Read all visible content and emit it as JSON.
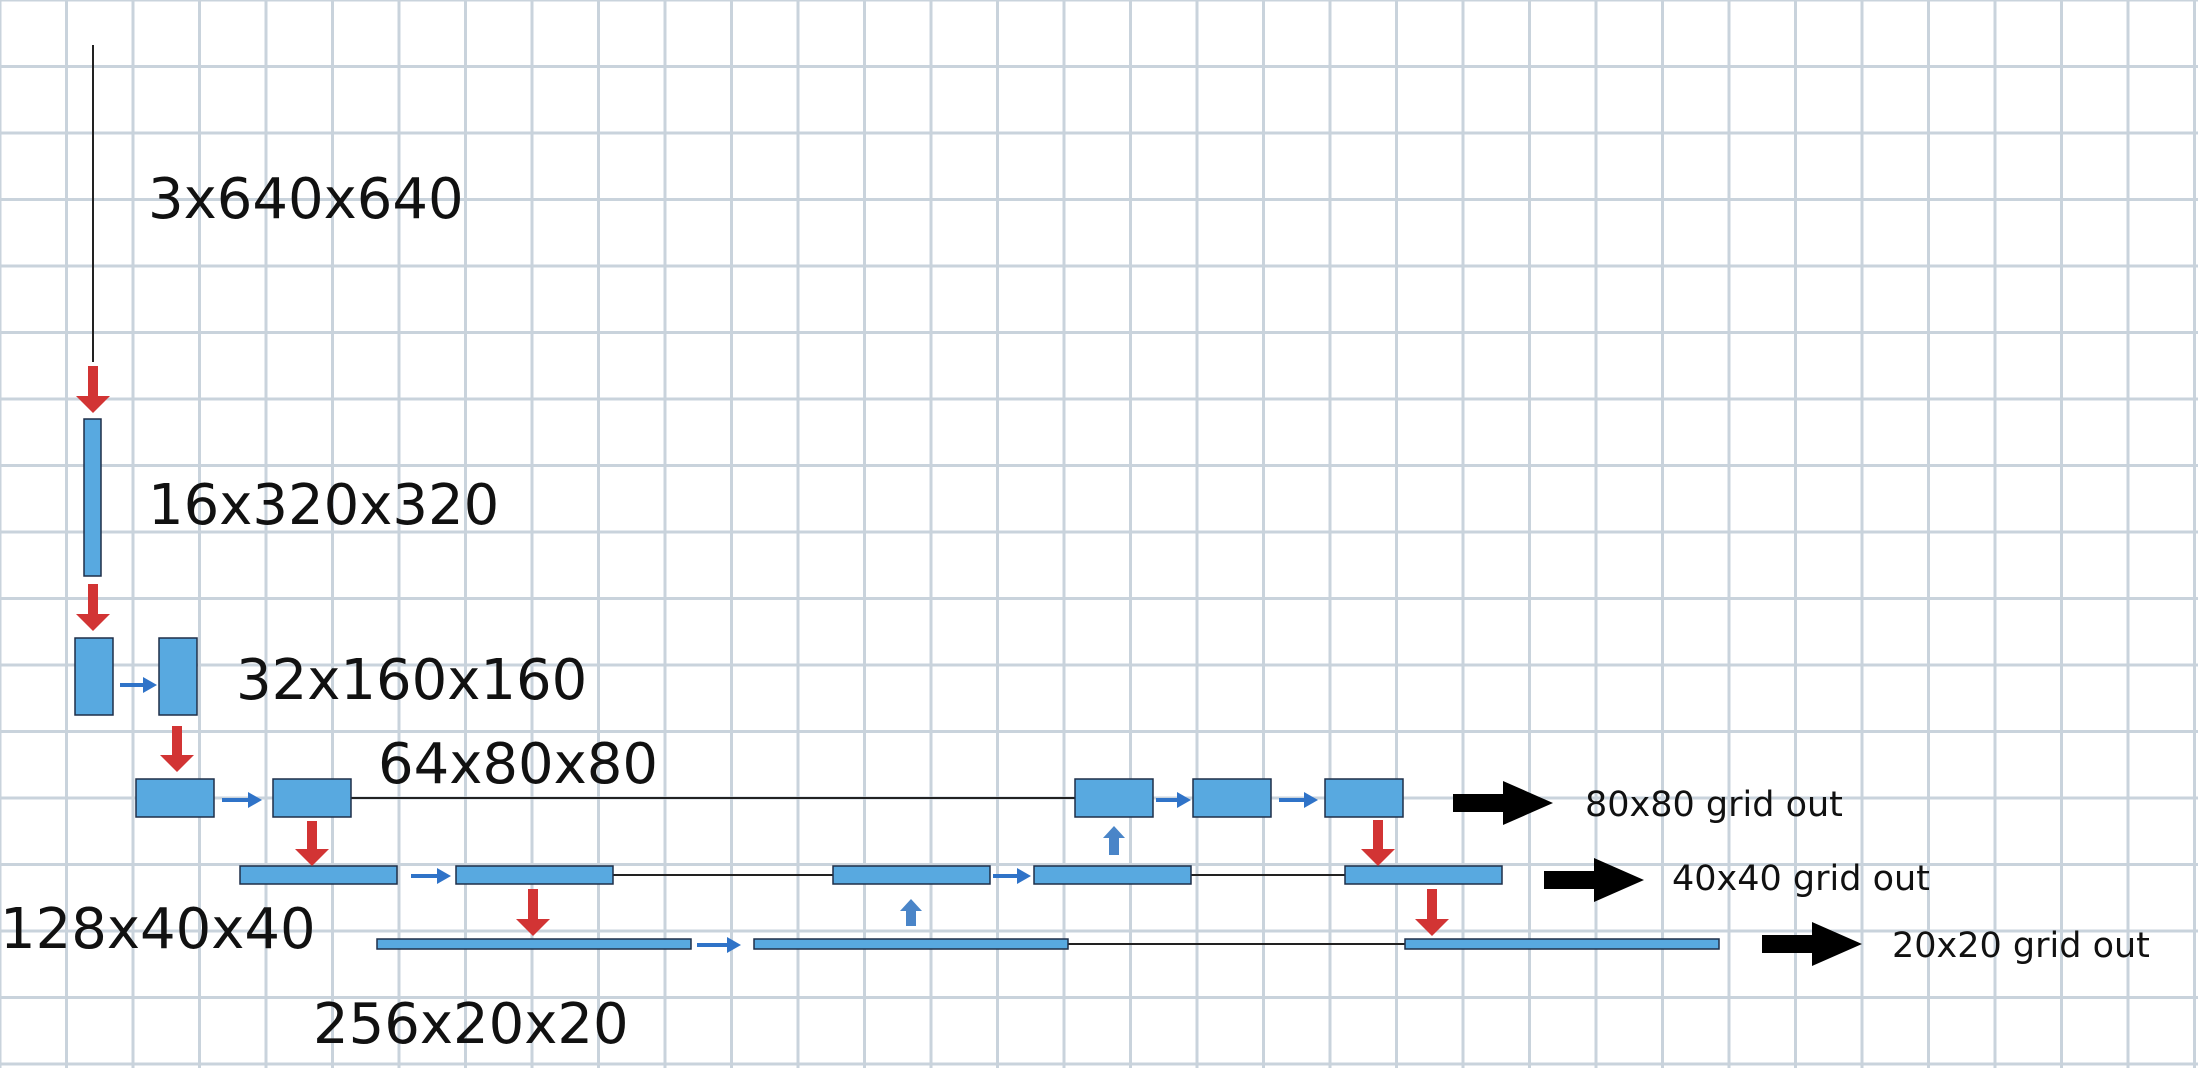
{
  "colors": {
    "block_fill": "#58a9e0",
    "block_stroke": "#1f2f48",
    "down_arrow": "#d23434",
    "right_arrow": "#2f73c8",
    "up_arrow": "#4a85c8",
    "output_arrow": "#000000",
    "grid": "#c9d3dc",
    "connector": "#222222"
  },
  "labels": {
    "input": "3x640x640",
    "level1": "16x320x320",
    "level2": "32x160x160",
    "level3": "64x80x80",
    "level4": "128x40x40",
    "level5": "256x20x20"
  },
  "outputs": {
    "out_80": "80x80 grid out",
    "out_40": "40x40 grid out",
    "out_20": "20x20 grid out"
  }
}
